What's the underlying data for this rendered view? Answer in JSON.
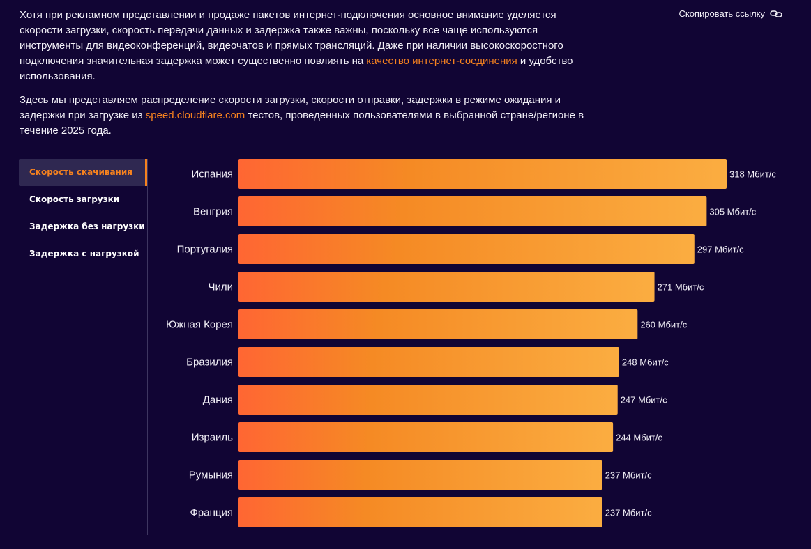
{
  "intro": {
    "p1_before": "Хотя при рекламном представлении и продаже пакетов интернет-подключения основное внимание уделяется скорости загрузки, скорость передачи данных и задержка также важны, поскольку все чаще используются инструменты для видеоконференций, видеочатов и прямых трансляций. Даже при наличии высокоскоростного подключения значительная задержка может существенно повлиять на ",
    "p1_link": "качество интернет-соединения",
    "p1_after": " и удобство использования.",
    "p2_before": "Здесь мы представляем распределение скорости загрузки, скорости отправки, задержки в режиме ожидания и задержки при загрузке из ",
    "p2_link": "speed.cloudflare.com",
    "p2_after": " тестов, проведенных пользователями в выбранной стране/регионе в течение 2025 года."
  },
  "copy_link": {
    "label": "Скопировать ссылку",
    "icon": "link-icon"
  },
  "tabs": [
    {
      "label": "Скорость скачивания",
      "active": true
    },
    {
      "label": "Скорость загрузки",
      "active": false
    },
    {
      "label": "Задержка без нагрузки",
      "active": false
    },
    {
      "label": "Задержка с нагрузкой",
      "active": false
    }
  ],
  "colors": {
    "accent": "#f6821f",
    "bar_start": "#ff6633",
    "bar_end": "#fbad41",
    "background": "#110534"
  },
  "chart_data": {
    "type": "bar",
    "orientation": "horizontal",
    "categories": [
      "Испания",
      "Венгрия",
      "Португалия",
      "Чили",
      "Южная Корея",
      "Бразилия",
      "Дания",
      "Израиль",
      "Румыния",
      "Франция"
    ],
    "values": [
      318,
      305,
      297,
      271,
      260,
      248,
      247,
      244,
      237,
      237
    ],
    "value_labels": [
      "318 Мбит/с",
      "305 Мбит/с",
      "297 Мбит/с",
      "271 Мбит/с",
      "260 Мбит/с",
      "248 Мбит/с",
      "247 Мбит/с",
      "244 Мбит/с",
      "237 Мбит/с",
      "237 Мбит/с"
    ],
    "unit": "Мбит/с",
    "xlim": [
      0,
      318
    ]
  }
}
